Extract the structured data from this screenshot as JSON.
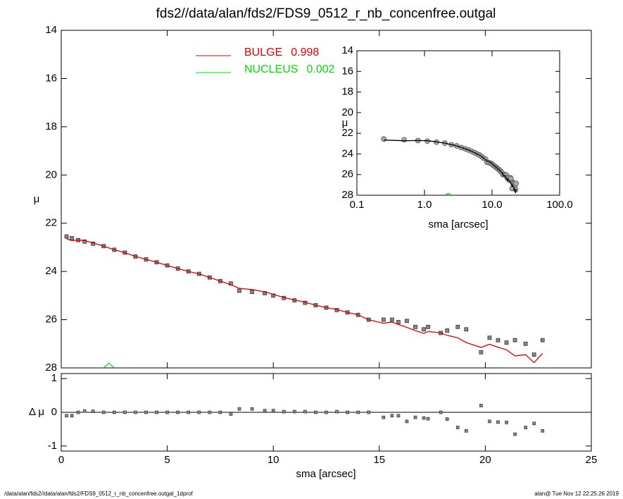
{
  "chart_data": [
    {
      "type": "line",
      "title": "fds2//data/alan/fds2/FDS9_0512_r_nb_concenfree.outgal",
      "ylabel": "μ",
      "xlim": [
        0,
        25
      ],
      "xticks": [
        0,
        5,
        10,
        15,
        20,
        25
      ],
      "ylim": [
        14,
        28
      ],
      "yticks": [
        14,
        16,
        18,
        20,
        22,
        24,
        26,
        28
      ],
      "y_inverted": true,
      "x": [
        0.25,
        0.5,
        0.8,
        1.1,
        1.5,
        2.0,
        2.5,
        3.0,
        3.5,
        4.0,
        4.5,
        5.0,
        5.5,
        6.0,
        6.5,
        7.0,
        7.5,
        8.0,
        8.4,
        9.0,
        9.6,
        10.0,
        10.5,
        11.0,
        11.5,
        12.0,
        12.5,
        13.0,
        13.5,
        14.0,
        14.5,
        15.2,
        15.6,
        15.9,
        16.3,
        16.7,
        17.1,
        17.3,
        17.9,
        18.2,
        18.7,
        19.1,
        19.8,
        20.2,
        20.6,
        21.0,
        21.4,
        21.9,
        22.3,
        22.7
      ],
      "series": [
        {
          "color": "#888888",
          "marker": "square",
          "values": [
            22.55,
            22.62,
            22.7,
            22.76,
            22.85,
            22.95,
            23.1,
            23.22,
            23.38,
            23.5,
            23.62,
            23.75,
            23.88,
            24.0,
            24.1,
            24.25,
            24.4,
            24.5,
            24.8,
            24.85,
            24.9,
            25.0,
            25.1,
            25.2,
            25.3,
            25.4,
            25.5,
            25.6,
            25.7,
            25.8,
            26.0,
            26.0,
            26.0,
            26.1,
            26.05,
            26.3,
            26.4,
            26.3,
            26.55,
            26.45,
            26.3,
            26.4,
            27.35,
            26.75,
            26.85,
            26.95,
            26.85,
            27.0,
            27.45,
            26.85
          ]
        },
        {
          "name": "BULGE",
          "fraction": 0.998,
          "color": "#e00000",
          "values": [
            22.65,
            22.72,
            22.7,
            22.72,
            22.82,
            22.95,
            23.1,
            23.22,
            23.38,
            23.5,
            23.62,
            23.75,
            23.88,
            24.0,
            24.1,
            24.25,
            24.4,
            24.55,
            24.7,
            24.75,
            24.85,
            24.95,
            25.08,
            25.18,
            25.28,
            25.4,
            25.5,
            25.58,
            25.7,
            25.8,
            26.0,
            26.15,
            26.1,
            26.2,
            26.32,
            26.45,
            26.57,
            26.49,
            26.55,
            26.65,
            26.75,
            26.95,
            27.15,
            27.02,
            27.14,
            27.25,
            27.5,
            27.45,
            27.78,
            27.4
          ]
        },
        {
          "name": "NUCLEUS",
          "fraction": 0.002,
          "color": "#00e000",
          "x": [
            2.0,
            2.25,
            2.5
          ],
          "values": [
            28.0,
            27.8,
            28.0
          ]
        }
      ]
    },
    {
      "type": "inset",
      "xlabel": "sma [arcsec]",
      "ylabel": "μ",
      "log_x": true,
      "xlim": [
        0.1,
        100
      ],
      "xticks": [
        {
          "value": 0.1,
          "label": "0.1"
        },
        {
          "value": 1,
          "label": "1.0"
        },
        {
          "value": 10,
          "label": "10.0"
        },
        {
          "value": 100,
          "label": "100.0"
        }
      ],
      "ylim": [
        14,
        28
      ],
      "yticks": [
        14,
        16,
        18,
        20,
        22,
        24,
        26,
        28
      ],
      "y_inverted": true
    },
    {
      "type": "residual",
      "xlabel": "sma [arcsec]",
      "ylabel": "Δ μ",
      "ylim": [
        -1.15,
        1.15
      ],
      "yticks": [
        -1,
        0,
        1
      ],
      "values": [
        -0.1,
        -0.1,
        0.0,
        0.04,
        0.03,
        0.0,
        0.0,
        0.0,
        0.0,
        0.0,
        0.0,
        0.0,
        0.0,
        0.0,
        0.0,
        0.0,
        0.0,
        -0.05,
        0.1,
        0.1,
        0.05,
        0.05,
        0.02,
        0.02,
        0.02,
        0.0,
        0.0,
        0.02,
        0.0,
        0.0,
        0.0,
        -0.15,
        -0.1,
        -0.1,
        -0.27,
        -0.15,
        -0.17,
        -0.19,
        0.0,
        -0.2,
        -0.45,
        -0.55,
        0.2,
        -0.27,
        -0.29,
        -0.3,
        -0.65,
        -0.45,
        -0.33,
        -0.55
      ]
    },
    {
      "type": "footer",
      "left": "/data/alan/fds2//data/alan/fds2/FDS9_0512_r_nb_concenfree.outgal_1dprof",
      "right": "alan@  Tue Nov 12 22:25:26 2019"
    }
  ]
}
